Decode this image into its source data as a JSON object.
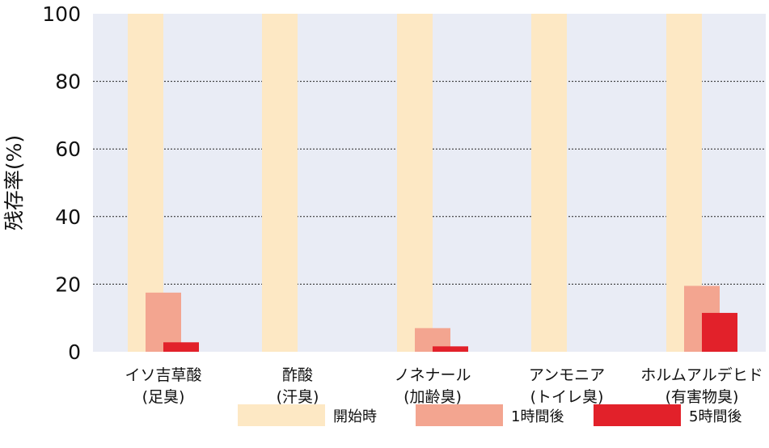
{
  "chart_data": {
    "type": "bar",
    "title": "",
    "xlabel": "",
    "ylabel": "残存率(%)",
    "ylim": [
      0,
      100
    ],
    "yticks": [
      0,
      20,
      40,
      60,
      80,
      100
    ],
    "grid": "horizontal dotted",
    "legend_position": "bottom",
    "categories": [
      [
        "イソ吉草酸",
        "(足臭)"
      ],
      [
        "酢酸",
        "(汗臭)"
      ],
      [
        "ノネナール",
        "(加齢臭)"
      ],
      [
        "アンモニア",
        "(トイレ臭)"
      ],
      [
        "ホルムアルデヒド",
        "(有害物臭)"
      ]
    ],
    "series": [
      {
        "name": "開始時",
        "color": "#fde8c4",
        "values": [
          100,
          100,
          100,
          100,
          100
        ]
      },
      {
        "name": "1時間後",
        "color": "#f3a590",
        "values": [
          17.5,
          null,
          7,
          null,
          19.5
        ]
      },
      {
        "name": "5時間後",
        "color": "#e2212a",
        "values": [
          2.8,
          null,
          1.6,
          null,
          11.5
        ]
      }
    ],
    "plot_background": "#e9ecf5"
  }
}
